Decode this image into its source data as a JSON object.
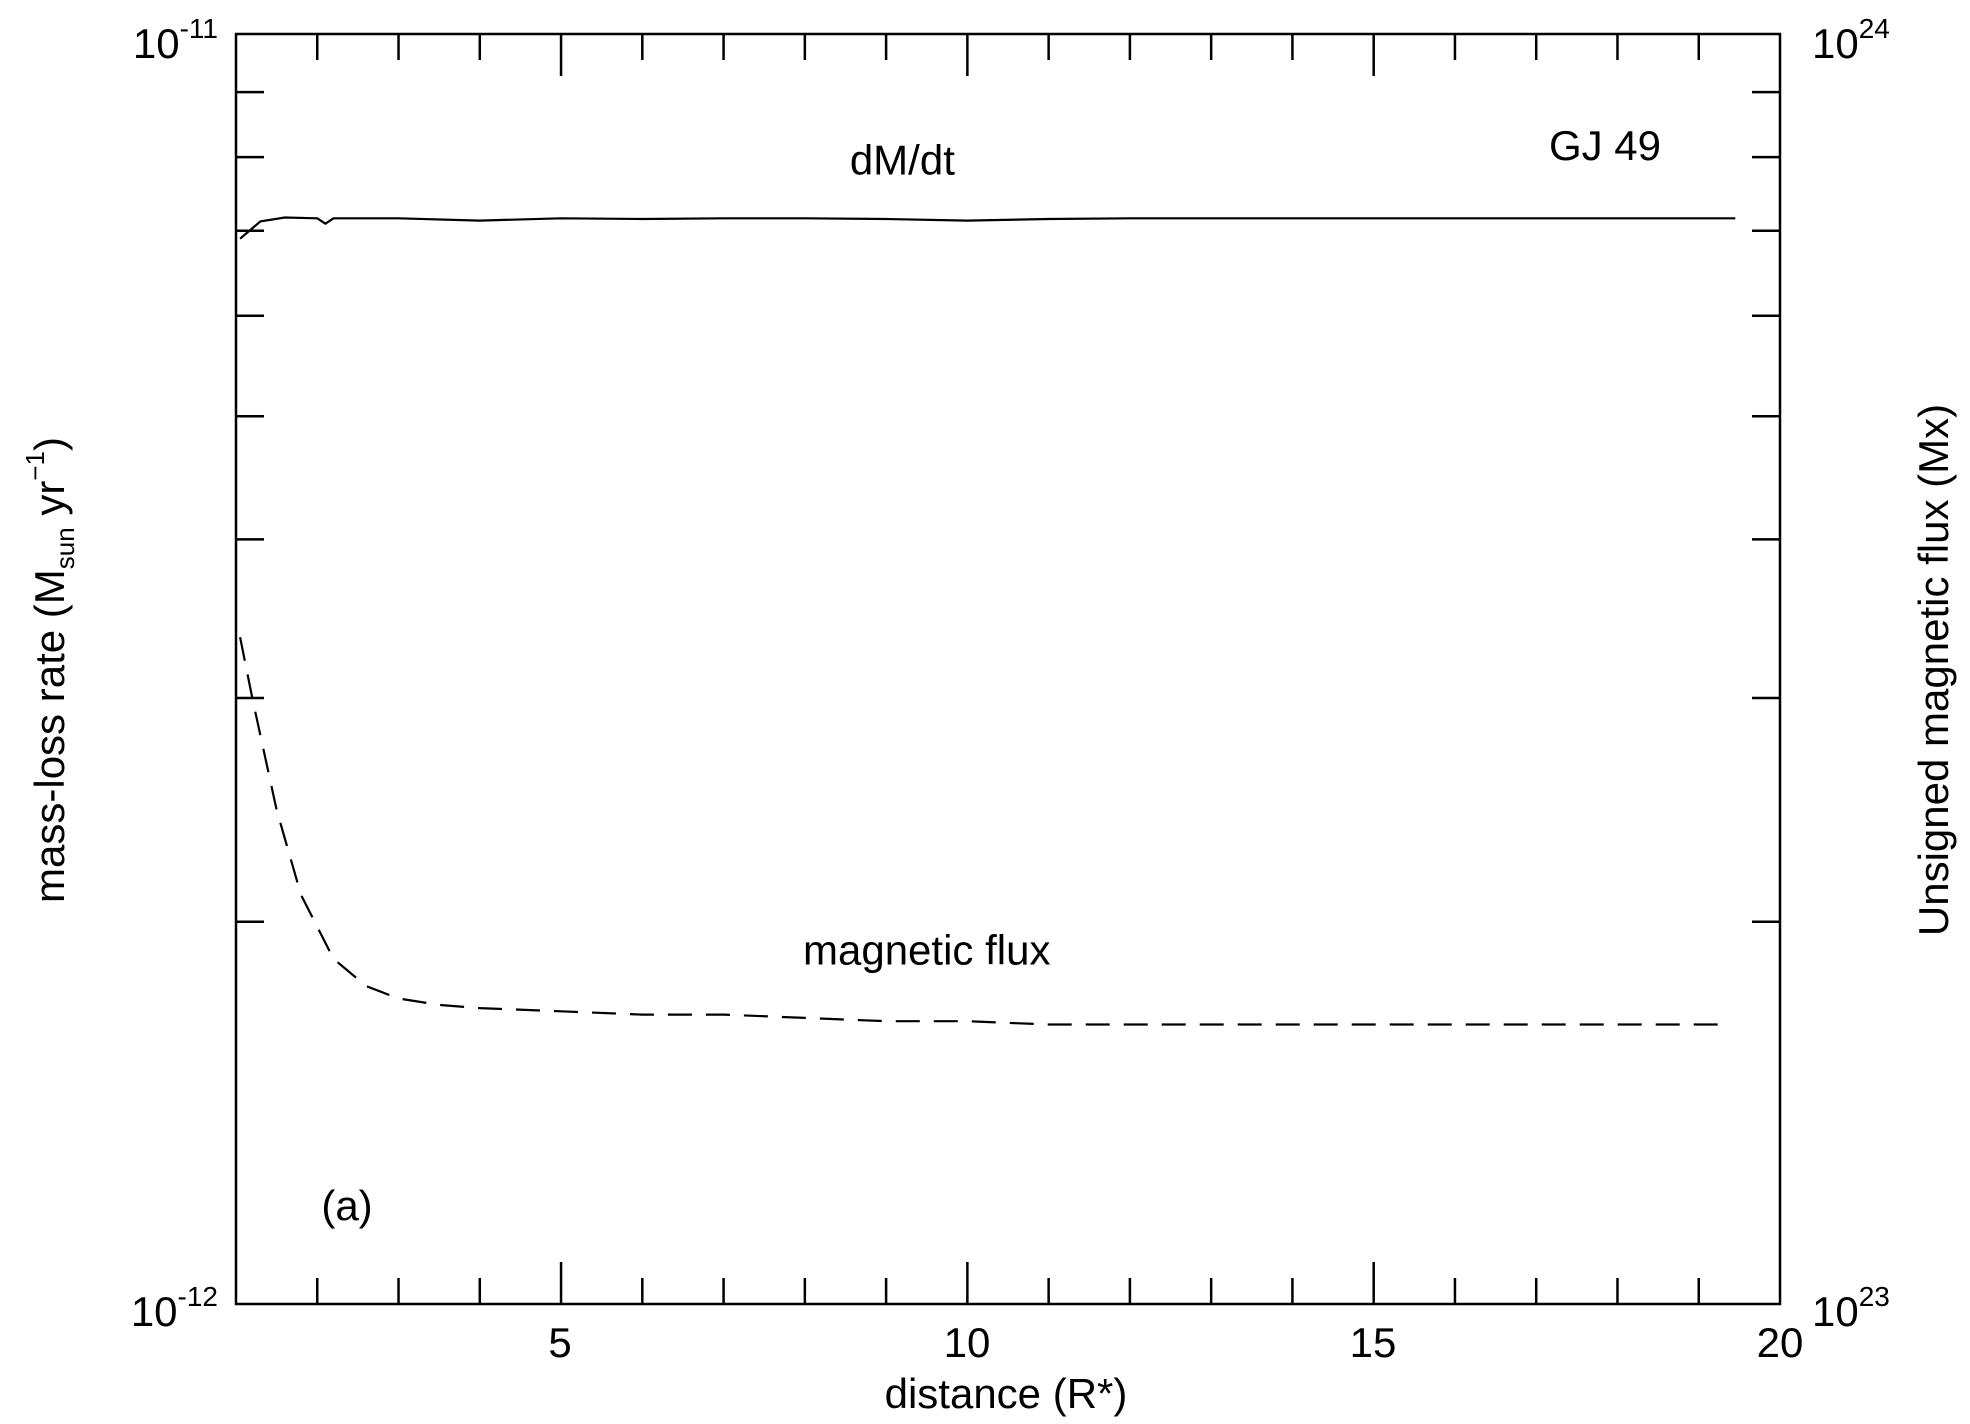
{
  "chart_data": {
    "type": "line",
    "panel_label": "(a)",
    "annotation": "GJ 49",
    "xlabel": "distance (R*)",
    "xlim": [
      1,
      20
    ],
    "x_tick_labels": [
      "5",
      "10",
      "15",
      "20"
    ],
    "y_left": {
      "label_parts": [
        "mass-loss rate (M",
        "sun",
        " yr",
        "−1",
        ")"
      ],
      "scale": "log",
      "lim": [
        1e-12,
        1e-11
      ],
      "tick_labels": [
        {
          "base": "10",
          "exp": "-12"
        },
        {
          "base": "10",
          "exp": "-11"
        }
      ]
    },
    "y_right": {
      "label": "Unsigned magnetic flux (Mx)",
      "scale": "log",
      "lim": [
        1e+23,
        1e+24
      ],
      "tick_labels": [
        {
          "base": "10",
          "exp": "23"
        },
        {
          "base": "10",
          "exp": "24"
        }
      ]
    },
    "series": [
      {
        "name": "dM/dt",
        "axis": "left",
        "style": "solid",
        "x": [
          1.05,
          1.3,
          1.6,
          2.0,
          2.1,
          2.2,
          3.0,
          4.0,
          5.0,
          6.0,
          7.0,
          8.0,
          9.0,
          10.0,
          11.0,
          12.0,
          13.0,
          14.0,
          15.0,
          16.0,
          17.0,
          18.0,
          19.0,
          19.45
        ],
        "y": [
          6.9e-12,
          7.12e-12,
          7.17e-12,
          7.16e-12,
          7.09e-12,
          7.16e-12,
          7.16e-12,
          7.13e-12,
          7.16e-12,
          7.15e-12,
          7.16e-12,
          7.16e-12,
          7.15e-12,
          7.13e-12,
          7.15e-12,
          7.16e-12,
          7.16e-12,
          7.16e-12,
          7.16e-12,
          7.16e-12,
          7.16e-12,
          7.16e-12,
          7.16e-12,
          7.16e-12
        ]
      },
      {
        "name": "magnetic flux",
        "axis": "right",
        "style": "dashed",
        "x": [
          1.05,
          1.2,
          1.5,
          1.8,
          2.2,
          2.6,
          3.0,
          3.5,
          4.0,
          5.0,
          6.0,
          7.0,
          8.0,
          9.0,
          10.0,
          11.0,
          12.0,
          13.0,
          14.0,
          15.0,
          16.0,
          17.0,
          18.0,
          19.0,
          19.35
        ],
        "y": [
          3.35e+23,
          3e+23,
          2.45e+23,
          2.1e+23,
          1.87e+23,
          1.78e+23,
          1.74e+23,
          1.72e+23,
          1.71e+23,
          1.7e+23,
          1.69e+23,
          1.69e+23,
          1.68e+23,
          1.67e+23,
          1.67e+23,
          1.66e+23,
          1.66e+23,
          1.66e+23,
          1.66e+23,
          1.66e+23,
          1.66e+23,
          1.66e+23,
          1.66e+23,
          1.66e+23,
          1.66e+23
        ]
      }
    ],
    "series_labels": [
      {
        "text": "dM/dt",
        "x": 9.2,
        "axis": "left",
        "y": 7.75e-12
      },
      {
        "text": "magnetic flux",
        "x": 9.5,
        "axis": "right",
        "y": 1.85e+23
      }
    ],
    "grid": false
  }
}
